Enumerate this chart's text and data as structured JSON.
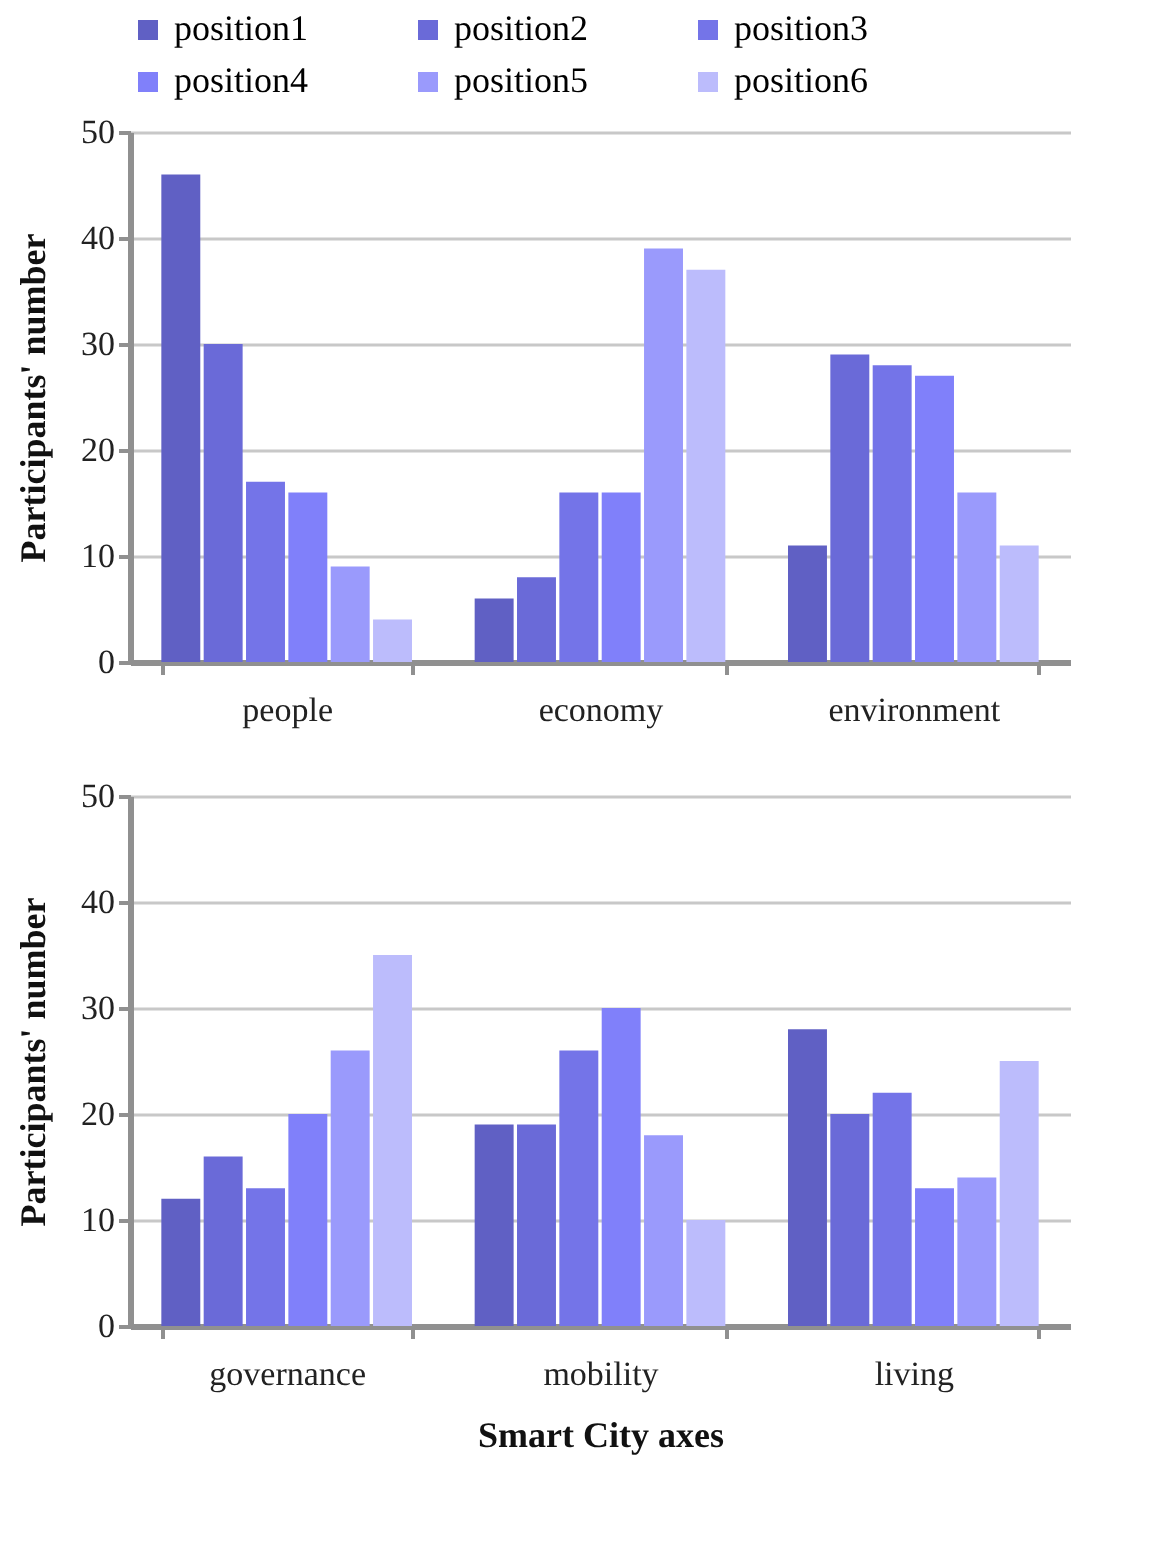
{
  "chart_data": [
    {
      "type": "bar",
      "ylabel": "Participants' number",
      "categories": [
        "people",
        "economy",
        "environment"
      ],
      "ylim": [
        0,
        50
      ],
      "yticks": [
        0,
        10,
        20,
        30,
        40,
        50
      ],
      "grid": "y",
      "legend": "top",
      "series": [
        {
          "name": "position1",
          "color": "#6060c4",
          "values": [
            46,
            6,
            11
          ]
        },
        {
          "name": "position2",
          "color": "#6a6ad8",
          "values": [
            30,
            8,
            29
          ]
        },
        {
          "name": "position3",
          "color": "#7474e8",
          "values": [
            17,
            16,
            28
          ]
        },
        {
          "name": "position4",
          "color": "#8080fa",
          "values": [
            16,
            16,
            27
          ]
        },
        {
          "name": "position5",
          "color": "#9a9afc",
          "values": [
            9,
            39,
            16
          ]
        },
        {
          "name": "position6",
          "color": "#bcbcfc",
          "values": [
            4,
            37,
            11
          ]
        }
      ]
    },
    {
      "type": "bar",
      "xlabel": "Smart City axes",
      "ylabel": "Participants' number",
      "categories": [
        "governance",
        "mobility",
        "living"
      ],
      "ylim": [
        0,
        50
      ],
      "yticks": [
        0,
        10,
        20,
        30,
        40,
        50
      ],
      "grid": "y",
      "series": [
        {
          "color": "#6060c4",
          "values": [
            12,
            19,
            28
          ]
        },
        {
          "color": "#6a6ad8",
          "values": [
            16,
            19,
            20
          ]
        },
        {
          "color": "#7474e8",
          "values": [
            13,
            26,
            22
          ]
        },
        {
          "color": "#8080fa",
          "values": [
            20,
            30,
            13
          ]
        },
        {
          "color": "#9a9afc",
          "values": [
            26,
            18,
            14
          ]
        },
        {
          "color": "#bcbcfc",
          "values": [
            35,
            10,
            25
          ]
        }
      ]
    }
  ]
}
